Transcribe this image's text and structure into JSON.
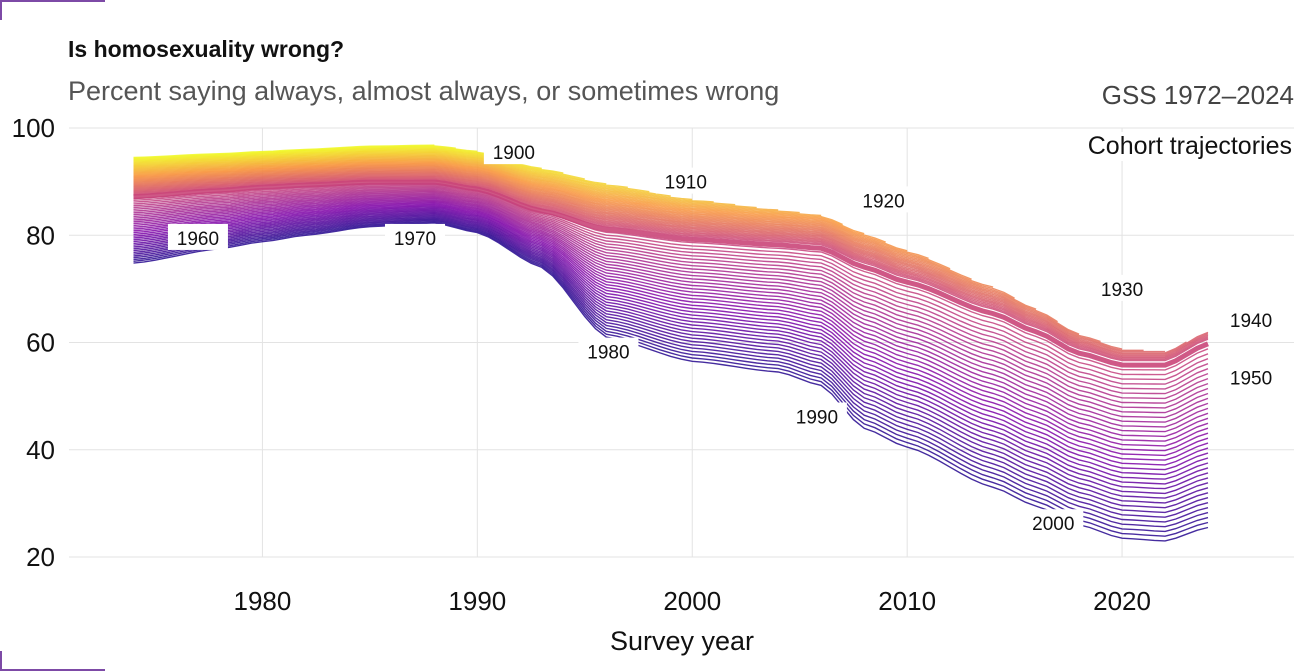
{
  "title": "Is homosexuality wrong?",
  "subtitle": "Percent saying always, almost always, or sometimes wrong",
  "caption": "GSS 1972–2024",
  "legend_title": "Cohort trajectories",
  "chart_data": {
    "type": "line",
    "title": "Is homosexuality wrong?",
    "xlabel": "Survey year",
    "ylabel": "",
    "xlim": [
      1971,
      2028
    ],
    "ylim": [
      20,
      100
    ],
    "x_ticks": [
      1980,
      1990,
      2000,
      2010,
      2020
    ],
    "y_ticks": [
      20,
      40,
      60,
      80,
      100
    ],
    "grid": true,
    "color_scale": [
      "#0d0887",
      "#7e03a8",
      "#cc4778",
      "#f89540",
      "#f0f921"
    ],
    "series_count": 80,
    "envelope": {
      "years": [
        1974,
        1978,
        1980,
        1982,
        1985,
        1988,
        1990,
        1993,
        1996,
        2000,
        2004,
        2006,
        2008,
        2010,
        2014,
        2016,
        2018,
        2020,
        2022,
        2024
      ],
      "top": [
        94.5,
        95.2,
        95.6,
        96.0,
        96.6,
        96.8,
        96.0,
        93.5,
        91.5,
        89.5,
        88.5,
        88.0,
        85.5,
        83.0,
        77.5,
        73.5,
        69.0,
        66.5,
        66.5,
        71.0
      ],
      "thick": [
        87.5,
        88.6,
        89.2,
        89.6,
        90.1,
        90.1,
        88.8,
        84.8,
        81.6,
        79.8,
        78.8,
        78.2,
        74.8,
        72.0,
        66.2,
        62.8,
        58.8,
        56.6,
        56.6,
        60.6
      ],
      "bottom": [
        74.8,
        77.5,
        78.8,
        80.0,
        81.6,
        82.3,
        80.5,
        74.0,
        69.0,
        68.0,
        67.5,
        66.8,
        62.0,
        59.5,
        53.0,
        50.0,
        47.0,
        45.0,
        45.0,
        48.0
      ],
      "thin_bottom": [
        74.8,
        77.5,
        78.8,
        80.0,
        81.6,
        82.3,
        80.5,
        74.0,
        61.0,
        56.5,
        54.5,
        52.0,
        44.0,
        40.5,
        33.0,
        29.5,
        26.0,
        23.5,
        23.0,
        25.5
      ],
      "start_year_by_cohort": "later cohorts begin when they reach adulthood"
    },
    "cohort_labels": [
      {
        "label": "1900",
        "x": 1991.7,
        "y": 95.5
      },
      {
        "label": "1910",
        "x": 1999.7,
        "y": 90.0
      },
      {
        "label": "1920",
        "x": 2008.9,
        "y": 86.5
      },
      {
        "label": "1930",
        "x": 2020.0,
        "y": 70.0
      },
      {
        "label": "1940",
        "x": 2026.0,
        "y": 64.2
      },
      {
        "label": "1950",
        "x": 2026.0,
        "y": 53.5
      },
      {
        "label": "1960",
        "x": 1977.0,
        "y": 79.5
      },
      {
        "label": "1970",
        "x": 1987.1,
        "y": 79.5
      },
      {
        "label": "1980",
        "x": 1996.1,
        "y": 58.3
      },
      {
        "label": "1990",
        "x": 2005.8,
        "y": 46.2
      },
      {
        "label": "2000",
        "x": 2016.8,
        "y": 26.3
      }
    ]
  }
}
